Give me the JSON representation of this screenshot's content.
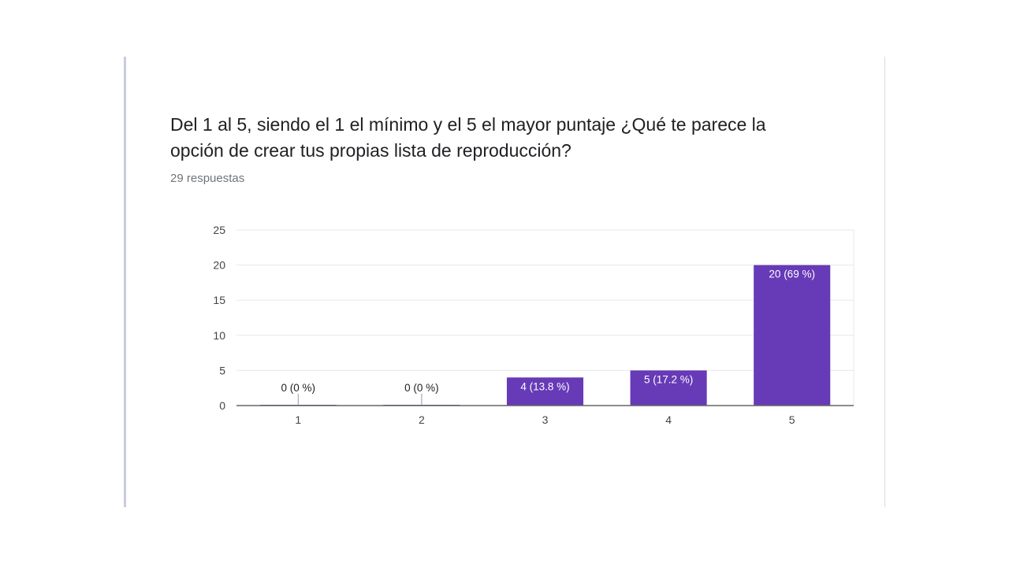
{
  "card": {
    "question": "Del 1 al 5, siendo el 1 el mínimo y el 5 el mayor puntaje ¿Qué te parece la opción de crear tus propias lista de reproducción?",
    "responses": "29 respuestas"
  },
  "colors": {
    "bar": "#673ab7",
    "axis": "#666666",
    "grid": "#e8e8e8"
  },
  "chart_data": {
    "type": "bar",
    "title": "",
    "xlabel": "",
    "ylabel": "",
    "categories": [
      "1",
      "2",
      "3",
      "4",
      "5"
    ],
    "values": [
      0,
      0,
      4,
      5,
      20
    ],
    "labels": [
      "0 (0 %)",
      "0 (0 %)",
      "4 (13.8 %)",
      "5 (17.2 %)",
      "20 (69 %)"
    ],
    "ylim": [
      0,
      25
    ],
    "yticks": [
      0,
      5,
      10,
      15,
      20,
      25
    ],
    "grid": true,
    "legend": "none"
  }
}
